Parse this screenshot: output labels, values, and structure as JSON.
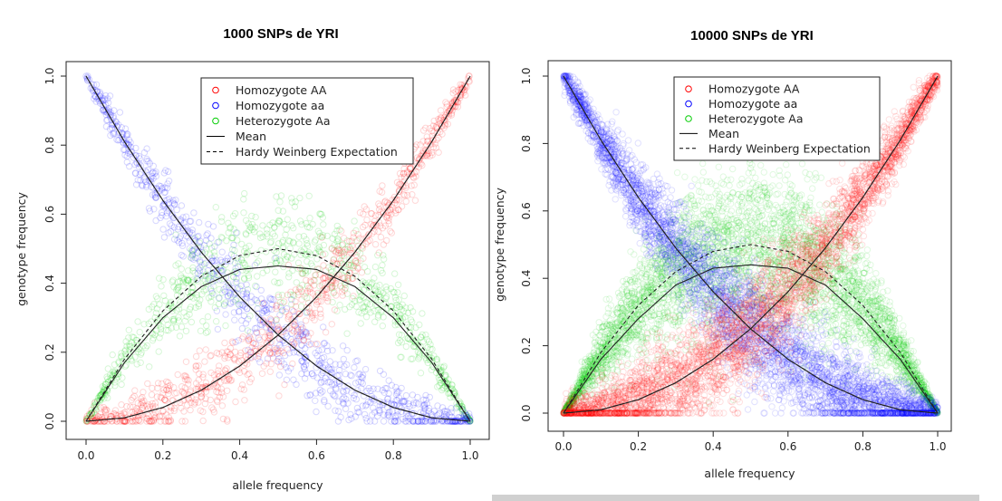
{
  "chart_data": [
    {
      "type": "scatter",
      "title": "1000 SNPs de YRI",
      "xlabel": "allele frequency",
      "ylabel": "genotype frequency",
      "xlim": [
        0,
        1
      ],
      "ylim": [
        0,
        1
      ],
      "xticks": [
        "0.0",
        "0.2",
        "0.4",
        "0.6",
        "0.8",
        "1.0"
      ],
      "yticks": [
        "0.0",
        "0.2",
        "0.4",
        "0.6",
        "0.8",
        "1.0"
      ],
      "n_snps": 1000,
      "point_alpha": 0.16,
      "spread": {
        "homo": 0.035,
        "het": 0.09
      },
      "legend_position": "top-right",
      "legend": [
        {
          "label": "Homozygote AA",
          "kind": "point",
          "color": "#ff0000"
        },
        {
          "label": "Homozygote aa",
          "kind": "point",
          "color": "#0000ff"
        },
        {
          "label": "Heterozygote Aa",
          "kind": "point",
          "color": "#00cc00"
        },
        {
          "label": "Mean",
          "kind": "solid-line",
          "color": "#000000"
        },
        {
          "label": "Hardy Weinberg Expectation",
          "kind": "dashed-line",
          "color": "#000000"
        }
      ],
      "series": [
        {
          "name": "Homozygote AA",
          "kind": "points",
          "color": "#ff0000",
          "formula": "p^2",
          "x": [
            0,
            0.1,
            0.2,
            0.3,
            0.4,
            0.5,
            0.6,
            0.7,
            0.8,
            0.9,
            1.0
          ],
          "y": [
            0,
            0.01,
            0.04,
            0.09,
            0.16,
            0.25,
            0.36,
            0.49,
            0.64,
            0.81,
            1.0
          ]
        },
        {
          "name": "Homozygote aa",
          "kind": "points",
          "color": "#0000ff",
          "formula": "(1-p)^2",
          "x": [
            0,
            0.1,
            0.2,
            0.3,
            0.4,
            0.5,
            0.6,
            0.7,
            0.8,
            0.9,
            1.0
          ],
          "y": [
            1.0,
            0.81,
            0.64,
            0.49,
            0.36,
            0.25,
            0.16,
            0.09,
            0.04,
            0.01,
            0
          ]
        },
        {
          "name": "Heterozygote Aa",
          "kind": "points",
          "color": "#00cc00",
          "formula": "2p(1-p)",
          "x": [
            0,
            0.1,
            0.2,
            0.3,
            0.4,
            0.5,
            0.6,
            0.7,
            0.8,
            0.9,
            1.0
          ],
          "y": [
            0,
            0.18,
            0.32,
            0.42,
            0.48,
            0.5,
            0.48,
            0.42,
            0.32,
            0.18,
            0
          ]
        },
        {
          "name": "Mean",
          "kind": "solid-curves",
          "curves": [
            {
              "x": [
                0,
                0.1,
                0.2,
                0.3,
                0.4,
                0.5,
                0.6,
                0.7,
                0.8,
                0.9,
                1.0
              ],
              "y": [
                0,
                0.01,
                0.04,
                0.09,
                0.16,
                0.25,
                0.36,
                0.49,
                0.64,
                0.81,
                1.0
              ]
            },
            {
              "x": [
                0,
                0.1,
                0.2,
                0.3,
                0.4,
                0.5,
                0.6,
                0.7,
                0.8,
                0.9,
                1.0
              ],
              "y": [
                1.0,
                0.81,
                0.64,
                0.49,
                0.36,
                0.25,
                0.16,
                0.09,
                0.04,
                0.01,
                0
              ]
            },
            {
              "x": [
                0,
                0.1,
                0.2,
                0.3,
                0.4,
                0.5,
                0.6,
                0.7,
                0.8,
                0.9,
                1.0
              ],
              "y": [
                0,
                0.17,
                0.3,
                0.39,
                0.44,
                0.45,
                0.44,
                0.39,
                0.3,
                0.17,
                0
              ]
            }
          ]
        },
        {
          "name": "Hardy Weinberg Expectation",
          "kind": "dashed-curves",
          "curves": [
            {
              "x": [
                0,
                0.1,
                0.2,
                0.3,
                0.4,
                0.5,
                0.6,
                0.7,
                0.8,
                0.9,
                1.0
              ],
              "y": [
                0,
                0.01,
                0.04,
                0.09,
                0.16,
                0.25,
                0.36,
                0.49,
                0.64,
                0.81,
                1.0
              ]
            },
            {
              "x": [
                0,
                0.1,
                0.2,
                0.3,
                0.4,
                0.5,
                0.6,
                0.7,
                0.8,
                0.9,
                1.0
              ],
              "y": [
                1.0,
                0.81,
                0.64,
                0.49,
                0.36,
                0.25,
                0.16,
                0.09,
                0.04,
                0.01,
                0
              ]
            },
            {
              "x": [
                0,
                0.1,
                0.2,
                0.3,
                0.4,
                0.5,
                0.6,
                0.7,
                0.8,
                0.9,
                1.0
              ],
              "y": [
                0,
                0.18,
                0.32,
                0.42,
                0.48,
                0.5,
                0.48,
                0.42,
                0.32,
                0.18,
                0
              ]
            }
          ]
        }
      ]
    },
    {
      "type": "scatter",
      "title": "10000 SNPs de YRI",
      "xlabel": "allele frequency",
      "ylabel": "genotype frequency",
      "xlim": [
        0,
        1
      ],
      "ylim": [
        0,
        1
      ],
      "xticks": [
        "0.0",
        "0.2",
        "0.4",
        "0.6",
        "0.8",
        "1.0"
      ],
      "yticks": [
        "0.0",
        "0.2",
        "0.4",
        "0.6",
        "0.8",
        "1.0"
      ],
      "n_snps": 10000,
      "point_alpha": 0.12,
      "spread": {
        "homo": 0.05,
        "het": 0.13
      },
      "legend_position": "top-right",
      "legend": [
        {
          "label": "Homozygote AA",
          "kind": "point",
          "color": "#ff0000"
        },
        {
          "label": "Homozygote aa",
          "kind": "point",
          "color": "#0000ff"
        },
        {
          "label": "Heterozygote Aa",
          "kind": "point",
          "color": "#00cc00"
        },
        {
          "label": "Mean",
          "kind": "solid-line",
          "color": "#000000"
        },
        {
          "label": "Hardy Weinberg Expectation",
          "kind": "dashed-line",
          "color": "#000000"
        }
      ],
      "series": [
        {
          "name": "Homozygote AA",
          "kind": "points",
          "color": "#ff0000",
          "formula": "p^2",
          "x": [
            0,
            0.1,
            0.2,
            0.3,
            0.4,
            0.5,
            0.6,
            0.7,
            0.8,
            0.9,
            1.0
          ],
          "y": [
            0,
            0.01,
            0.04,
            0.09,
            0.16,
            0.25,
            0.36,
            0.49,
            0.64,
            0.81,
            1.0
          ]
        },
        {
          "name": "Homozygote aa",
          "kind": "points",
          "color": "#0000ff",
          "formula": "(1-p)^2",
          "x": [
            0,
            0.1,
            0.2,
            0.3,
            0.4,
            0.5,
            0.6,
            0.7,
            0.8,
            0.9,
            1.0
          ],
          "y": [
            1.0,
            0.81,
            0.64,
            0.49,
            0.36,
            0.25,
            0.16,
            0.09,
            0.04,
            0.01,
            0
          ]
        },
        {
          "name": "Heterozygote Aa",
          "kind": "points",
          "color": "#00cc00",
          "formula": "2p(1-p)",
          "x": [
            0,
            0.1,
            0.2,
            0.3,
            0.4,
            0.5,
            0.6,
            0.7,
            0.8,
            0.9,
            1.0
          ],
          "y": [
            0,
            0.18,
            0.32,
            0.42,
            0.48,
            0.5,
            0.48,
            0.42,
            0.32,
            0.18,
            0
          ]
        },
        {
          "name": "Mean",
          "kind": "solid-curves",
          "curves": [
            {
              "x": [
                0,
                0.1,
                0.2,
                0.3,
                0.4,
                0.5,
                0.6,
                0.7,
                0.8,
                0.9,
                1.0
              ],
              "y": [
                0,
                0.01,
                0.04,
                0.09,
                0.16,
                0.25,
                0.36,
                0.49,
                0.64,
                0.81,
                1.0
              ]
            },
            {
              "x": [
                0,
                0.1,
                0.2,
                0.3,
                0.4,
                0.5,
                0.6,
                0.7,
                0.8,
                0.9,
                1.0
              ],
              "y": [
                1.0,
                0.81,
                0.64,
                0.49,
                0.36,
                0.25,
                0.16,
                0.09,
                0.04,
                0.01,
                0
              ]
            },
            {
              "x": [
                0,
                0.1,
                0.2,
                0.3,
                0.4,
                0.5,
                0.6,
                0.7,
                0.8,
                0.9,
                1.0
              ],
              "y": [
                0,
                0.16,
                0.28,
                0.38,
                0.43,
                0.44,
                0.43,
                0.38,
                0.28,
                0.16,
                0
              ]
            }
          ]
        },
        {
          "name": "Hardy Weinberg Expectation",
          "kind": "dashed-curves",
          "curves": [
            {
              "x": [
                0,
                0.1,
                0.2,
                0.3,
                0.4,
                0.5,
                0.6,
                0.7,
                0.8,
                0.9,
                1.0
              ],
              "y": [
                0,
                0.01,
                0.04,
                0.09,
                0.16,
                0.25,
                0.36,
                0.49,
                0.64,
                0.81,
                1.0
              ]
            },
            {
              "x": [
                0,
                0.1,
                0.2,
                0.3,
                0.4,
                0.5,
                0.6,
                0.7,
                0.8,
                0.9,
                1.0
              ],
              "y": [
                1.0,
                0.81,
                0.64,
                0.49,
                0.36,
                0.25,
                0.16,
                0.09,
                0.04,
                0.01,
                0
              ]
            },
            {
              "x": [
                0,
                0.1,
                0.2,
                0.3,
                0.4,
                0.5,
                0.6,
                0.7,
                0.8,
                0.9,
                1.0
              ],
              "y": [
                0,
                0.18,
                0.32,
                0.42,
                0.48,
                0.5,
                0.48,
                0.42,
                0.32,
                0.18,
                0
              ]
            }
          ]
        }
      ]
    }
  ]
}
